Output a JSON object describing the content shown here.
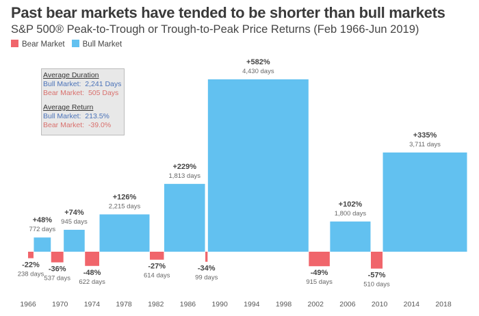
{
  "title": "Past bear markets have tended to be shorter than bull markets",
  "subtitle": "S&P 500® Peak-to-Trough or Trough-to-Peak Price Returns (Feb 1966-Jun 2019)",
  "summary": {
    "duration_heading": "Average Duration",
    "bull_duration": "Bull Market:  2,241 Days",
    "bear_duration": "Bear Market:  505 Days",
    "return_heading": "Average Return",
    "bull_return": "Bull Market:  213.5%",
    "bear_return": "Bear Market:  -39.0%"
  },
  "chart_data": {
    "type": "bar",
    "title": "Past bear markets have tended to be shorter than bull markets",
    "legend": [
      {
        "name": "Bear Market",
        "color": "#f0656b"
      },
      {
        "name": "Bull Market",
        "color": "#62c1f0"
      }
    ],
    "legend_placement": "top-left",
    "x_ticks": [
      "1966",
      "1970",
      "1974",
      "1978",
      "1982",
      "1986",
      "1990",
      "1994",
      "1998",
      "2002",
      "2006",
      "2010",
      "2014",
      "2018"
    ],
    "periods": [
      {
        "type": "bear",
        "return_pct": -22,
        "label": "-22%",
        "days": 238,
        "days_label": "238 days"
      },
      {
        "type": "bull",
        "return_pct": 48,
        "label": "+48%",
        "days": 772,
        "days_label": "772 days"
      },
      {
        "type": "bear",
        "return_pct": -36,
        "label": "-36%",
        "days": 537,
        "days_label": "537 days"
      },
      {
        "type": "bull",
        "return_pct": 74,
        "label": "+74%",
        "days": 945,
        "days_label": "945 days"
      },
      {
        "type": "bear",
        "return_pct": -48,
        "label": "-48%",
        "days": 622,
        "days_label": "622 days"
      },
      {
        "type": "bull",
        "return_pct": 126,
        "label": "+126%",
        "days": 2215,
        "days_label": "2,215 days"
      },
      {
        "type": "bear",
        "return_pct": -27,
        "label": "-27%",
        "days": 614,
        "days_label": "614 days"
      },
      {
        "type": "bull",
        "return_pct": 229,
        "label": "+229%",
        "days": 1813,
        "days_label": "1,813 days"
      },
      {
        "type": "bear",
        "return_pct": -34,
        "label": "-34%",
        "days": 99,
        "days_label": "99 days"
      },
      {
        "type": "bull",
        "return_pct": 582,
        "label": "+582%",
        "days": 4430,
        "days_label": "4,430 days"
      },
      {
        "type": "bear",
        "return_pct": -49,
        "label": "-49%",
        "days": 915,
        "days_label": "915 days"
      },
      {
        "type": "bull",
        "return_pct": 102,
        "label": "+102%",
        "days": 1800,
        "days_label": "1,800 days"
      },
      {
        "type": "bear",
        "return_pct": -57,
        "label": "-57%",
        "days": 510,
        "days_label": "510 days"
      },
      {
        "type": "bull",
        "return_pct": 335,
        "label": "+335%",
        "days": 3711,
        "days_label": "3,711 days"
      }
    ]
  }
}
